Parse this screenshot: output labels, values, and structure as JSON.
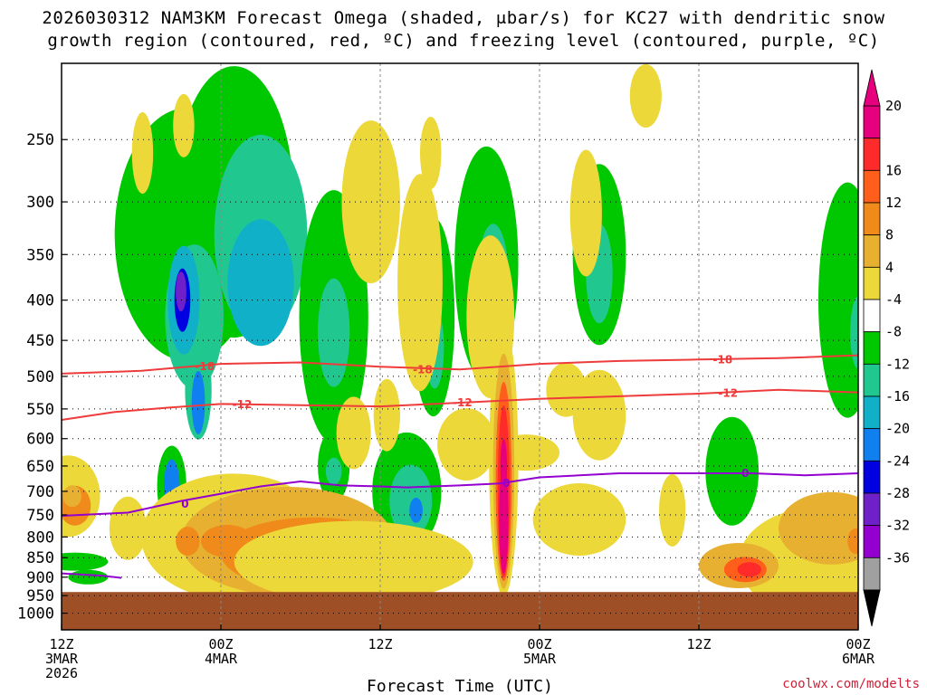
{
  "chart_data": {
    "type": "heatmap",
    "title_line1": "2026030312 NAM3KM Forecast Omega (shaded, μbar/s) for KC27 with dendritic snow",
    "title_line2": "growth region (contoured, red, ºC) and freezing level (contoured, purple, ºC)",
    "xlabel": "Forecast Time (UTC)",
    "credit": "coolwx.com/modelts",
    "y_axis": {
      "label": "",
      "scale": "log-pressure (hPa), inverted",
      "ticks": [
        "250",
        "300",
        "350",
        "400",
        "450",
        "500",
        "550",
        "600",
        "650",
        "700",
        "750",
        "800",
        "850",
        "900",
        "950",
        "1000"
      ],
      "range_hpa": [
        200,
        1050
      ]
    },
    "x_axis": {
      "range_hours": [
        0,
        60
      ],
      "ticks": [
        {
          "hour": 0,
          "l1": "12Z",
          "l2": "3MAR",
          "l3": "2026"
        },
        {
          "hour": 12,
          "l1": "00Z",
          "l2": "4MAR",
          "l3": ""
        },
        {
          "hour": 24,
          "l1": "12Z",
          "l2": "",
          "l3": ""
        },
        {
          "hour": 36,
          "l1": "00Z",
          "l2": "5MAR",
          "l3": ""
        },
        {
          "hour": 48,
          "l1": "12Z",
          "l2": "",
          "l3": ""
        },
        {
          "hour": 60,
          "l1": "00Z",
          "l2": "6MAR",
          "l3": ""
        }
      ]
    },
    "colorbar": {
      "labels": [
        "20",
        "16",
        "12",
        "8",
        "4",
        "-4",
        "-8",
        "-12",
        "-16",
        "-20",
        "-24",
        "-28",
        "-32",
        "-36"
      ],
      "colors": [
        "#e6007e",
        "#ff2a2a",
        "#ff5f1a",
        "#f08a1a",
        "#e8b030",
        "#ecd838",
        "#ffffff",
        "#00c800",
        "#20c890",
        "#10b0c8",
        "#1080f0",
        "#0000e0",
        "#7020c8",
        "#9400d0",
        "#a0a0a0"
      ],
      "top_arrow_color": "#e6007e",
      "bottom_arrow_color": "#000000"
    },
    "terrain_color": "#9e4f25",
    "terrain_top_hpa": 940,
    "contours": [
      {
        "label": "-18",
        "color": "#ee3b3b",
        "points": [
          [
            0,
            496
          ],
          [
            6,
            492
          ],
          [
            12,
            482
          ],
          [
            18,
            480
          ],
          [
            24,
            486
          ],
          [
            30,
            490
          ],
          [
            36,
            482
          ],
          [
            42,
            478
          ],
          [
            48,
            476
          ],
          [
            54,
            474
          ],
          [
            60,
            470
          ]
        ],
        "label_at": [
          [
            10.8,
            486
          ],
          [
            27.2,
            490
          ],
          [
            49.8,
            476
          ]
        ]
      },
      {
        "label": "-12",
        "color": "#ee3b3b",
        "points": [
          [
            0,
            568
          ],
          [
            4,
            555
          ],
          [
            8,
            548
          ],
          [
            12,
            542
          ],
          [
            18,
            544
          ],
          [
            24,
            546
          ],
          [
            30,
            540
          ],
          [
            36,
            534
          ],
          [
            42,
            530
          ],
          [
            48,
            526
          ],
          [
            54,
            520
          ],
          [
            60,
            524
          ]
        ],
        "label_at": [
          [
            13.6,
            543
          ],
          [
            30.2,
            540
          ],
          [
            50.2,
            525
          ]
        ]
      },
      {
        "label": "0",
        "color": "#9400d0",
        "points": [
          [
            0,
            752
          ],
          [
            5,
            745
          ],
          [
            9,
            720
          ],
          [
            12,
            705
          ],
          [
            15,
            690
          ],
          [
            18,
            680
          ],
          [
            21,
            688
          ],
          [
            24,
            690
          ],
          [
            26,
            692
          ],
          [
            30,
            688
          ],
          [
            33,
            684
          ],
          [
            36,
            672
          ],
          [
            42,
            664
          ],
          [
            48,
            664
          ],
          [
            52,
            664
          ],
          [
            56,
            668
          ],
          [
            60,
            664
          ]
        ],
        "label_at": [
          [
            9.3,
            727
          ],
          [
            33.5,
            684
          ],
          [
            51.5,
            664
          ]
        ]
      },
      {
        "label": "",
        "color": "#9400d0",
        "points": [
          [
            0,
            890
          ],
          [
            3,
            896
          ],
          [
            4.5,
            902
          ]
        ],
        "label_at": []
      }
    ]
  }
}
